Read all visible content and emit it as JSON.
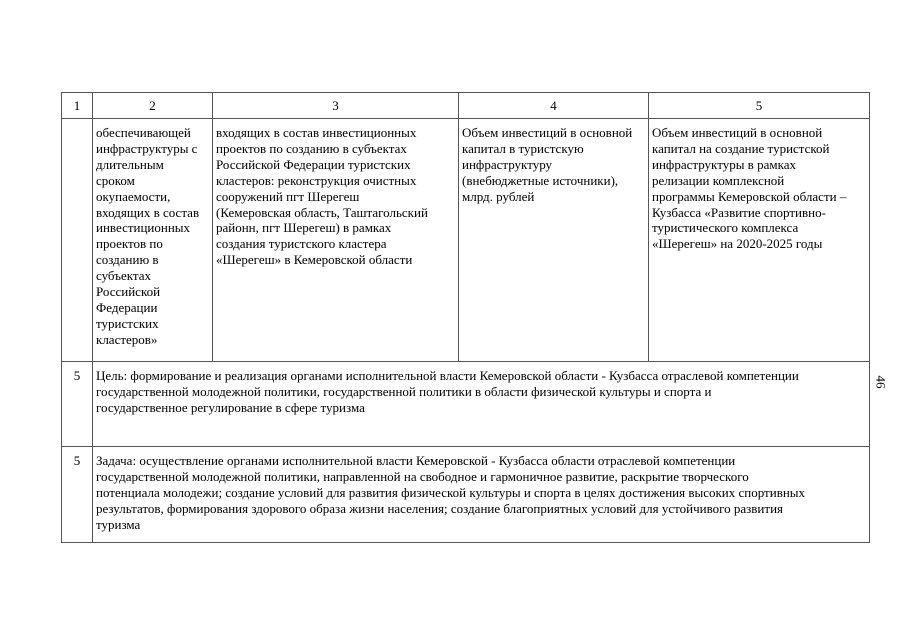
{
  "table": {
    "header": [
      "1",
      "2",
      "3",
      "4",
      "5"
    ],
    "row_continuation": {
      "col1": "",
      "col2": " обеспечивающей\nинфраструктуры с\nдлительным\nсроком\nокупаемости,\nвходящих в состав\nинвестиционных\nпроектов по\nсозданию в\nсубъектах\nРоссийской\nФедерации\nтуристских\nкластеров»",
      "col3": "входящих в состав инвестиционных\nпроектов по созданию в субъектах\nРоссийской Федерации туристских\nкластеров: реконструкция очистных\nсооружений пгт Шерегеш\n(Кемеровская область, Таштагольский\nрайонн, пгт Шерегеш) в рамках\nсоздания туристского кластера\n«Шерегеш» в Кемеровской области",
      "col4": "Объем инвестиций в основной\nкапитал в туристскую\nинфраструктуру\n(внебюджетные источники),\nмлрд. рублей",
      "col5": "Объем инвестиций в основной\nкапитал на создание туристской\nинфраструктуры в рамках\nрелизации комплексной\nпрограммы Кемеровской области –\nКузбасса «Развитие спортивно-\nтуристического комплекса\n«Шерегеш» на 2020-2025 годы"
    },
    "goal_row": {
      "num": "5",
      "text": "Цель: формирование и реализация органами исполнительной власти Кемеровской области - Кузбасса отраслевой компетенции\nгосударственной молодежной политики, государственной политики в области физической культуры и спорта и\nгосударственное регулирование в сфере туризма"
    },
    "task_row": {
      "num": "5",
      "text": "Задача: осуществление органами исполнительной власти Кемеровской - Кузбасса области отраслевой компетенции\nгосударственной молодежной политики, направленной на свободное и гармоничное развитие, раскрытие творческого\nпотенциала молодежи; создание условий для развития физической культуры и спорта в целях достижения высоких спортивных\nрезультатов, формирования здорового образа жизни населения; создание благоприятных условий для устойчивого развития\nтуризма"
    }
  },
  "page_number": "46"
}
